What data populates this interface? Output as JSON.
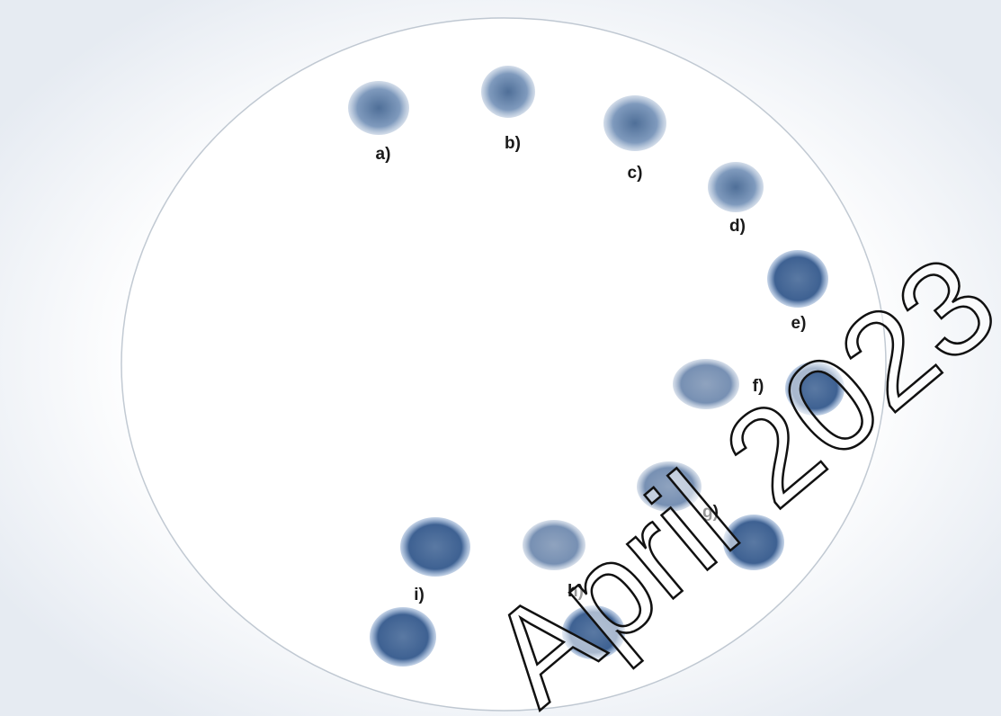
{
  "labels": [
    "a)",
    "b)",
    "c)",
    "d)",
    "e)",
    "f)",
    "g)",
    "h)",
    "i)"
  ],
  "watermark": "April 2023"
}
